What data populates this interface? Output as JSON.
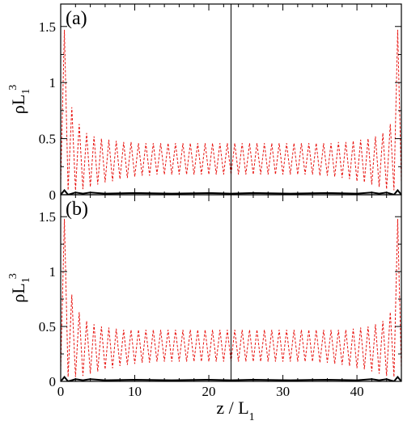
{
  "chart_data": [
    {
      "type": "line",
      "panel_label": "(a)",
      "xlabel": "z / L",
      "xlabel_sub": "1",
      "ylabel": "ρL",
      "ylabel_sub": "1",
      "ylabel_sup": "3",
      "xlim": [
        0,
        46
      ],
      "ylim": [
        0,
        1.7
      ],
      "xticks": [
        0,
        10,
        20,
        30,
        40
      ],
      "yticks": [
        0,
        0.5,
        1,
        1.5
      ],
      "ytick_labels": [
        "0",
        "0.5",
        "1",
        "1.5"
      ],
      "vline_x": 23,
      "grid": false,
      "series": [
        {
          "color": "#e8130f",
          "style": "dashed",
          "points": [
            [
              0,
              0.1
            ],
            [
              0.5,
              1.47
            ],
            [
              1.0,
              0.04
            ],
            [
              1.5,
              0.78
            ],
            [
              2.0,
              0.04
            ],
            [
              2.5,
              0.63
            ],
            [
              3.0,
              0.05
            ],
            [
              3.5,
              0.55
            ],
            [
              4.0,
              0.07
            ],
            [
              4.5,
              0.52
            ],
            [
              5.0,
              0.09
            ],
            [
              5.5,
              0.5
            ],
            [
              6.0,
              0.11
            ],
            [
              6.5,
              0.49
            ],
            [
              7.0,
              0.12
            ],
            [
              7.5,
              0.48
            ],
            [
              8.0,
              0.14
            ],
            [
              8.5,
              0.47
            ],
            [
              9.0,
              0.15
            ],
            [
              9.5,
              0.47
            ],
            [
              10.0,
              0.16
            ],
            [
              10.5,
              0.46
            ],
            [
              11.0,
              0.17
            ],
            [
              11.5,
              0.46
            ],
            [
              12.0,
              0.17
            ],
            [
              12.5,
              0.46
            ],
            [
              13.0,
              0.18
            ],
            [
              13.5,
              0.46
            ],
            [
              14.0,
              0.18
            ],
            [
              14.5,
              0.46
            ],
            [
              15.0,
              0.18
            ],
            [
              15.5,
              0.46
            ],
            [
              16.0,
              0.18
            ],
            [
              16.5,
              0.46
            ],
            [
              17.0,
              0.18
            ],
            [
              17.5,
              0.46
            ],
            [
              18.0,
              0.18
            ],
            [
              18.5,
              0.46
            ],
            [
              19.0,
              0.18
            ],
            [
              19.5,
              0.46
            ],
            [
              20.0,
              0.18
            ],
            [
              20.5,
              0.46
            ],
            [
              21.0,
              0.18
            ],
            [
              21.5,
              0.46
            ],
            [
              22.0,
              0.18
            ],
            [
              22.5,
              0.46
            ],
            [
              23.0,
              0.18
            ],
            [
              23.5,
              0.46
            ],
            [
              24.0,
              0.18
            ],
            [
              24.5,
              0.46
            ],
            [
              25.0,
              0.18
            ],
            [
              25.5,
              0.46
            ],
            [
              26.0,
              0.18
            ],
            [
              26.5,
              0.46
            ],
            [
              27.0,
              0.18
            ],
            [
              27.5,
              0.46
            ],
            [
              28.0,
              0.18
            ],
            [
              28.5,
              0.46
            ],
            [
              29.0,
              0.18
            ],
            [
              29.5,
              0.46
            ],
            [
              30.0,
              0.18
            ],
            [
              30.5,
              0.46
            ],
            [
              31.0,
              0.18
            ],
            [
              31.5,
              0.46
            ],
            [
              32.0,
              0.18
            ],
            [
              32.5,
              0.46
            ],
            [
              33.0,
              0.18
            ],
            [
              33.5,
              0.46
            ],
            [
              34.0,
              0.18
            ],
            [
              34.5,
              0.46
            ],
            [
              35.0,
              0.17
            ],
            [
              35.5,
              0.46
            ],
            [
              36.0,
              0.17
            ],
            [
              36.5,
              0.46
            ],
            [
              37.0,
              0.16
            ],
            [
              37.5,
              0.47
            ],
            [
              38.0,
              0.15
            ],
            [
              38.5,
              0.47
            ],
            [
              39.0,
              0.14
            ],
            [
              39.5,
              0.48
            ],
            [
              40.0,
              0.12
            ],
            [
              40.5,
              0.49
            ],
            [
              41.0,
              0.11
            ],
            [
              41.5,
              0.5
            ],
            [
              42.0,
              0.09
            ],
            [
              42.5,
              0.52
            ],
            [
              43.0,
              0.07
            ],
            [
              43.5,
              0.55
            ],
            [
              44.0,
              0.05
            ],
            [
              44.5,
              0.63
            ],
            [
              45.0,
              0.04
            ],
            [
              45.5,
              1.47
            ],
            [
              46.0,
              0.1
            ]
          ]
        },
        {
          "color": "#000000",
          "style": "solid",
          "points": [
            [
              0,
              0.0
            ],
            [
              0.5,
              0.04
            ],
            [
              1.0,
              0.0
            ],
            [
              2.0,
              0.02
            ],
            [
              3.0,
              0.01
            ],
            [
              4.0,
              0.02
            ],
            [
              6.0,
              0.01
            ],
            [
              10.0,
              0.015
            ],
            [
              15.0,
              0.01
            ],
            [
              20.0,
              0.015
            ],
            [
              23.0,
              0.01
            ],
            [
              26.0,
              0.015
            ],
            [
              31.0,
              0.01
            ],
            [
              36.0,
              0.015
            ],
            [
              40.0,
              0.01
            ],
            [
              42.0,
              0.02
            ],
            [
              43.0,
              0.01
            ],
            [
              44.0,
              0.02
            ],
            [
              45.0,
              0.0
            ],
            [
              45.5,
              0.04
            ],
            [
              46.0,
              0.0
            ]
          ]
        }
      ]
    },
    {
      "type": "line",
      "panel_label": "(b)",
      "xlabel": "z / L",
      "xlabel_sub": "1",
      "ylabel": "ρL",
      "ylabel_sub": "1",
      "ylabel_sup": "3",
      "xlim": [
        0,
        46
      ],
      "ylim": [
        0,
        1.7
      ],
      "xticks": [
        0,
        10,
        20,
        30,
        40
      ],
      "yticks": [
        0,
        0.5,
        1,
        1.5
      ],
      "ytick_labels": [
        "0",
        "0.5",
        "1",
        "1.5"
      ],
      "vline_x": 23,
      "grid": false,
      "series": [
        {
          "color": "#e8130f",
          "style": "dashed",
          "points": [
            [
              0,
              0.1
            ],
            [
              0.5,
              1.48
            ],
            [
              1.0,
              0.04
            ],
            [
              1.5,
              0.79
            ],
            [
              2.0,
              0.04
            ],
            [
              2.5,
              0.63
            ],
            [
              3.0,
              0.05
            ],
            [
              3.5,
              0.55
            ],
            [
              4.0,
              0.07
            ],
            [
              4.5,
              0.52
            ],
            [
              5.0,
              0.09
            ],
            [
              5.5,
              0.5
            ],
            [
              6.0,
              0.11
            ],
            [
              6.5,
              0.49
            ],
            [
              7.0,
              0.12
            ],
            [
              7.5,
              0.48
            ],
            [
              8.0,
              0.14
            ],
            [
              8.5,
              0.47
            ],
            [
              9.0,
              0.15
            ],
            [
              9.5,
              0.47
            ],
            [
              10.0,
              0.16
            ],
            [
              10.5,
              0.47
            ],
            [
              11.0,
              0.17
            ],
            [
              11.5,
              0.47
            ],
            [
              12.0,
              0.17
            ],
            [
              12.5,
              0.47
            ],
            [
              13.0,
              0.18
            ],
            [
              13.5,
              0.47
            ],
            [
              14.0,
              0.18
            ],
            [
              14.5,
              0.47
            ],
            [
              15.0,
              0.18
            ],
            [
              15.5,
              0.47
            ],
            [
              16.0,
              0.18
            ],
            [
              16.5,
              0.47
            ],
            [
              17.0,
              0.18
            ],
            [
              17.5,
              0.47
            ],
            [
              18.0,
              0.18
            ],
            [
              18.5,
              0.47
            ],
            [
              19.0,
              0.18
            ],
            [
              19.5,
              0.47
            ],
            [
              20.0,
              0.18
            ],
            [
              20.5,
              0.47
            ],
            [
              21.0,
              0.18
            ],
            [
              21.5,
              0.47
            ],
            [
              22.0,
              0.18
            ],
            [
              22.5,
              0.47
            ],
            [
              23.0,
              0.18
            ],
            [
              23.5,
              0.47
            ],
            [
              24.0,
              0.18
            ],
            [
              24.5,
              0.47
            ],
            [
              25.0,
              0.18
            ],
            [
              25.5,
              0.47
            ],
            [
              26.0,
              0.18
            ],
            [
              26.5,
              0.47
            ],
            [
              27.0,
              0.18
            ],
            [
              27.5,
              0.47
            ],
            [
              28.0,
              0.18
            ],
            [
              28.5,
              0.47
            ],
            [
              29.0,
              0.18
            ],
            [
              29.5,
              0.47
            ],
            [
              30.0,
              0.18
            ],
            [
              30.5,
              0.47
            ],
            [
              31.0,
              0.18
            ],
            [
              31.5,
              0.47
            ],
            [
              32.0,
              0.18
            ],
            [
              32.5,
              0.47
            ],
            [
              33.0,
              0.18
            ],
            [
              33.5,
              0.47
            ],
            [
              34.0,
              0.18
            ],
            [
              34.5,
              0.47
            ],
            [
              35.0,
              0.17
            ],
            [
              35.5,
              0.47
            ],
            [
              36.0,
              0.17
            ],
            [
              36.5,
              0.47
            ],
            [
              37.0,
              0.16
            ],
            [
              37.5,
              0.47
            ],
            [
              38.0,
              0.15
            ],
            [
              38.5,
              0.47
            ],
            [
              39.0,
              0.14
            ],
            [
              39.5,
              0.48
            ],
            [
              40.0,
              0.12
            ],
            [
              40.5,
              0.49
            ],
            [
              41.0,
              0.11
            ],
            [
              41.5,
              0.5
            ],
            [
              42.0,
              0.09
            ],
            [
              42.5,
              0.52
            ],
            [
              43.0,
              0.07
            ],
            [
              43.5,
              0.55
            ],
            [
              44.0,
              0.05
            ],
            [
              44.5,
              0.63
            ],
            [
              45.0,
              0.04
            ],
            [
              45.5,
              1.48
            ],
            [
              46.0,
              0.1
            ]
          ]
        },
        {
          "color": "#000000",
          "style": "solid",
          "points": [
            [
              0,
              0.0
            ],
            [
              0.5,
              0.04
            ],
            [
              1.0,
              0.0
            ],
            [
              2.0,
              0.02
            ],
            [
              3.0,
              0.01
            ],
            [
              4.0,
              0.02
            ],
            [
              6.0,
              0.01
            ],
            [
              10.0,
              0.015
            ],
            [
              15.0,
              0.01
            ],
            [
              20.0,
              0.015
            ],
            [
              23.0,
              0.01
            ],
            [
              26.0,
              0.015
            ],
            [
              31.0,
              0.01
            ],
            [
              36.0,
              0.015
            ],
            [
              40.0,
              0.01
            ],
            [
              42.0,
              0.02
            ],
            [
              43.0,
              0.01
            ],
            [
              44.0,
              0.02
            ],
            [
              45.0,
              0.0
            ],
            [
              45.5,
              0.04
            ],
            [
              46.0,
              0.0
            ]
          ]
        }
      ]
    }
  ]
}
